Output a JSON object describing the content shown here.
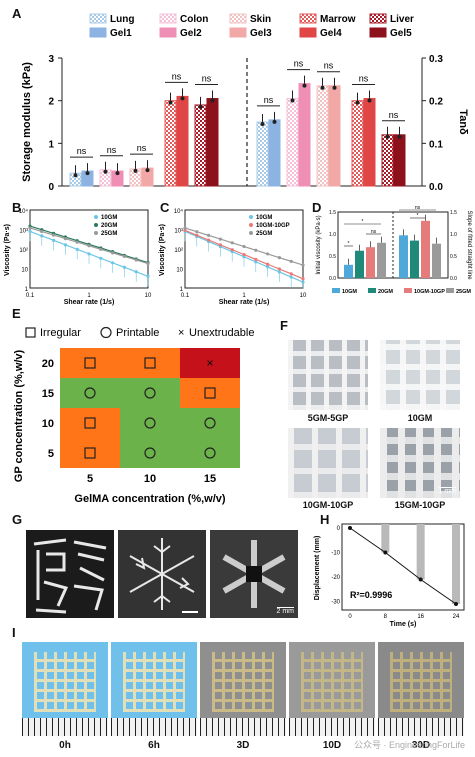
{
  "panels": {
    "a": "A",
    "b": "B",
    "c": "C",
    "d": "D",
    "e": "E",
    "f": "F",
    "g": "G",
    "h": "H",
    "i": "I"
  },
  "panelA": {
    "legend": [
      "Lung",
      "Colon",
      "Skin",
      "Marrow",
      "Liver",
      "Gel1",
      "Gel2",
      "Gel3",
      "Gel4",
      "Gel5"
    ],
    "ylabel_left": "Storage modulus (kPa)",
    "ylabel_right": "Tanδ",
    "yticks_left": [
      "0",
      "1",
      "2",
      "3"
    ],
    "yticks_right": [
      "0.0",
      "0.1",
      "0.2",
      "0.3"
    ],
    "ns": "ns",
    "colors": {
      "lung": "#a9cbe8",
      "gel1": "#8db3e2",
      "colon": "#f6c1d6",
      "gel2": "#ef8fb6",
      "skin": "#f2c2c2",
      "gel3": "#f3a8a8",
      "marrow": "#e35a5a",
      "gel4": "#e04646",
      "liver": "#a71d2a",
      "gel5": "#8c111b"
    }
  },
  "chart_data": [
    {
      "type": "bar",
      "panel": "A",
      "categories": [
        "Lung",
        "Gel1",
        "Colon",
        "Gel2",
        "Skin",
        "Gel3",
        "Marrow",
        "Gel4",
        "Liver",
        "Gel5"
      ],
      "series": [
        {
          "name": "Storage modulus (kPa)",
          "values": [
            0.3,
            0.35,
            0.38,
            0.35,
            0.4,
            0.42,
            2.0,
            2.1,
            1.9,
            2.05
          ]
        },
        {
          "name": "Tanδ",
          "values": [
            0.15,
            0.155,
            0.205,
            0.24,
            0.235,
            0.235,
            0.2,
            0.205,
            0.12,
            0.12
          ]
        }
      ],
      "ylim": [
        0,
        3
      ],
      "ylim_right": [
        0,
        0.3
      ]
    },
    {
      "type": "scatter",
      "panel": "B",
      "series": [
        {
          "name": "10GM",
          "x": [
            0.1,
            1,
            10
          ],
          "y": [
            800,
            60,
            4
          ]
        },
        {
          "name": "20GM",
          "x": [
            0.1,
            1,
            10
          ],
          "y": [
            1500,
            200,
            20
          ]
        },
        {
          "name": "25GM",
          "x": [
            0.1,
            1,
            10
          ],
          "y": [
            1200,
            180,
            18
          ]
        }
      ],
      "xlabel": "Shear rate (1/s)",
      "ylabel": "Viscosity (Pa·s)",
      "xscale": "log",
      "yscale": "log"
    },
    {
      "type": "scatter",
      "panel": "C",
      "series": [
        {
          "name": "10GM",
          "x": [
            0.1,
            1,
            10
          ],
          "y": [
            800,
            40,
            2
          ]
        },
        {
          "name": "10GM-10GP",
          "x": [
            0.1,
            1,
            10
          ],
          "y": [
            900,
            60,
            3
          ]
        },
        {
          "name": "25GM",
          "x": [
            0.1,
            1,
            10
          ],
          "y": [
            1200,
            150,
            15
          ]
        }
      ],
      "xlabel": "Shear rate (1/s)",
      "ylabel": "Viscosity (Pa·s)",
      "xscale": "log",
      "yscale": "log"
    },
    {
      "type": "bar",
      "panel": "D",
      "categories": [
        "10GM",
        "20GM",
        "10GM-10GP",
        "25GM"
      ],
      "series": [
        {
          "name": "Initial viscosity (kPa·s)",
          "values": [
            0.3,
            0.62,
            0.7,
            0.8
          ]
        },
        {
          "name": "Slope of fitted straight line",
          "values": [
            0.97,
            0.85,
            1.3,
            0.78
          ]
        }
      ]
    },
    {
      "type": "heatmap",
      "panel": "E",
      "x": [
        5,
        10,
        15
      ],
      "y": [
        5,
        10,
        15,
        20
      ],
      "xlabel": "GelMA concentration (%,w/v)",
      "ylabel": "GP concentration (%,w/v)",
      "cells": [
        [
          "Irregular",
          "Irregular",
          "Unextrudable"
        ],
        [
          "Printable",
          "Printable",
          "Irregular"
        ],
        [
          "Irregular",
          "Printable",
          "Printable"
        ],
        [
          "Irregular",
          "Printable",
          "Printable"
        ]
      ]
    },
    {
      "type": "line",
      "panel": "H",
      "x": [
        0,
        8,
        16,
        24
      ],
      "y": [
        0,
        -10,
        -21,
        -31
      ],
      "xlabel": "Time (s)",
      "ylabel": "Displacement (mm)",
      "annotation": "R²=0.9996"
    }
  ],
  "panelB": {
    "legend": [
      "10GM",
      "20GM",
      "25GM"
    ],
    "colors": [
      "#6cc6e5",
      "#2a7a5a",
      "#9a9a9a"
    ],
    "yticks": [
      "10⁴",
      "10³",
      "10²",
      "10",
      "1"
    ],
    "xticks": [
      "0.1",
      "1",
      "10"
    ],
    "xlabel": "Shear rate (1/s)",
    "ylabel": "Viscosity (Pa·s)"
  },
  "panelC": {
    "legend": [
      "10GM",
      "10GM-10GP",
      "25GM"
    ],
    "colors": [
      "#6cc6e5",
      "#e87a7a",
      "#9a9a9a"
    ],
    "yticks": [
      "10⁴",
      "10³",
      "10²",
      "10",
      "1"
    ],
    "xticks": [
      "0.1",
      "1",
      "10"
    ],
    "xlabel": "Shear rate (1/s)",
    "ylabel": "Viscosity (Pa·s)"
  },
  "panelD": {
    "legend": [
      "10GM",
      "20GM",
      "10GM-10GP",
      "25GM"
    ],
    "colors": [
      "#4ea8d9",
      "#1f8a7a",
      "#e57b7b",
      "#9a9a9a"
    ],
    "ylabel_left": "Initial viscosity (kPa·s)",
    "ylabel_right": "Slope of fitted straight line",
    "yticks_left": [
      "0.0",
      "0.5",
      "1.0",
      "1.5"
    ],
    "yticks_right": [
      "0.0",
      "0.5",
      "1.0",
      "1.5"
    ],
    "sig": [
      "*",
      "*",
      "ns",
      "ns",
      "*",
      "ns"
    ]
  },
  "panelE": {
    "legend": {
      "irregular": "Irregular",
      "printable": "Printable",
      "unextrudable": "Unextrudable"
    },
    "xlabel": "GelMA concentration (%,w/v)",
    "ylabel": "GP concentration (%,w/v)",
    "xticks": [
      "5",
      "10",
      "15"
    ],
    "yticks": [
      "20",
      "15",
      "10",
      "5"
    ],
    "colors": {
      "orange": "#ff7518",
      "green": "#6bb24a",
      "red": "#c5121a"
    }
  },
  "panelF": {
    "captions": [
      "5GM-5GP",
      "10GM",
      "10GM-10GP",
      "15GM-10GP"
    ],
    "scale": "1 mm"
  },
  "panelG": {
    "scale": "2 mm"
  },
  "panelH": {
    "xlabel": "Time (s)",
    "ylabel": "Displacement (mm)",
    "xticks": [
      "0",
      "8",
      "16",
      "24"
    ],
    "yticks": [
      "0",
      "-10",
      "-20",
      "-30"
    ],
    "r2": "R²=0.9996"
  },
  "panelI": {
    "captions": [
      "0h",
      "6h",
      "3D",
      "10D",
      "30D"
    ]
  },
  "watermark": "公众号 · EngineeringForLife"
}
